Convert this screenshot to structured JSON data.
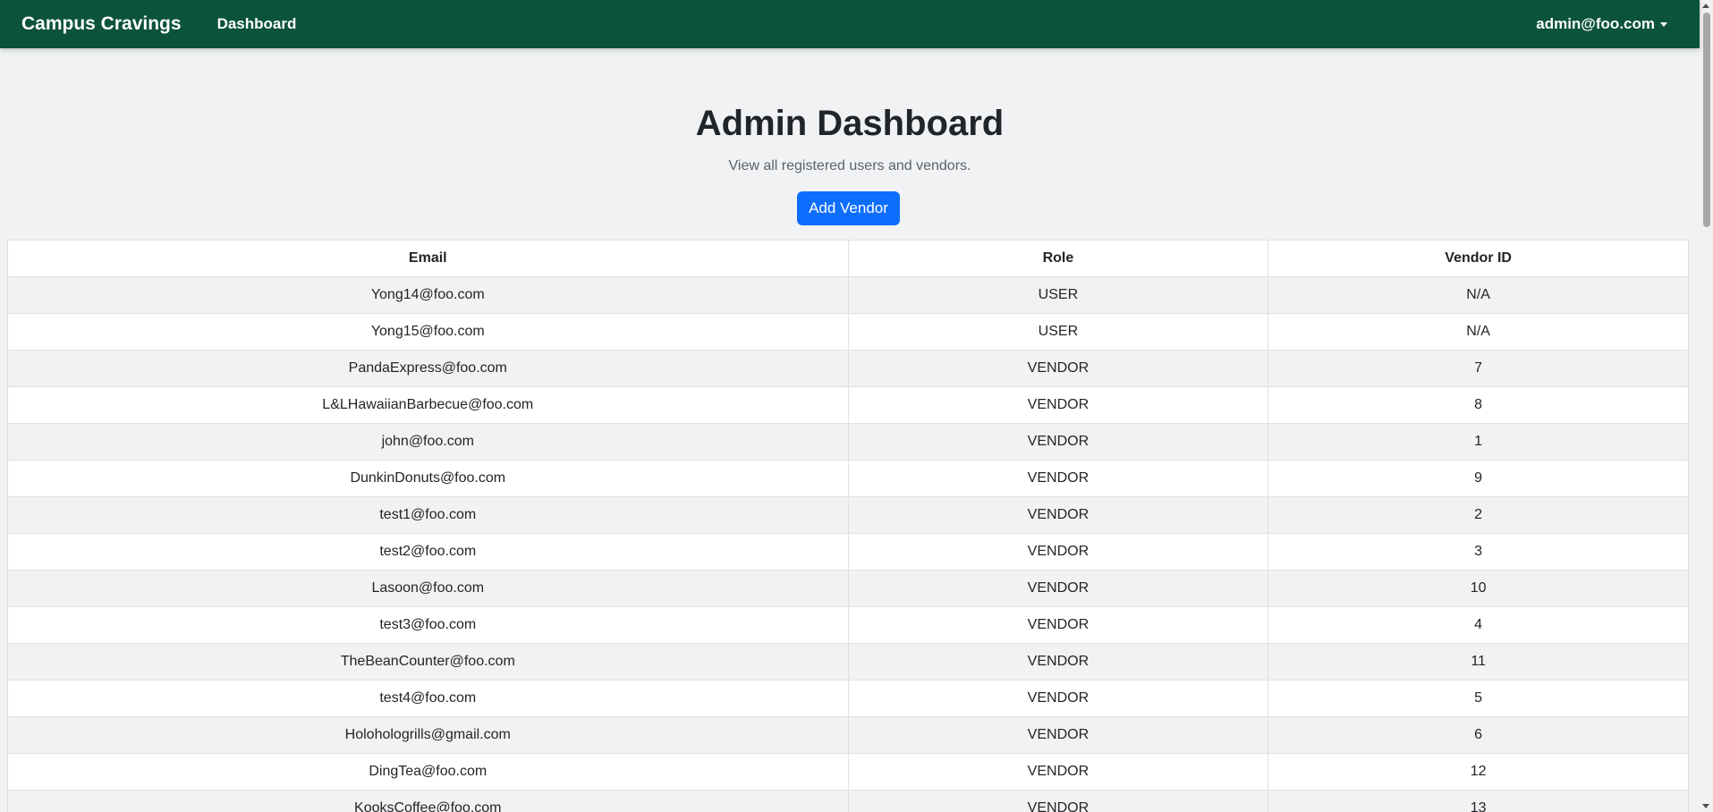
{
  "navbar": {
    "brand": "Campus Cravings",
    "links": [
      "Dashboard"
    ],
    "user": "admin@foo.com",
    "bg_color": "#0b533b"
  },
  "main": {
    "title": "Admin Dashboard",
    "subtitle": "View all registered users and vendors.",
    "add_button": "Add Vendor",
    "accent": "#0d6efd"
  },
  "table": {
    "headers": [
      "Email",
      "Role",
      "Vendor ID"
    ],
    "rows": [
      [
        "Yong14@foo.com",
        "USER",
        "N/A"
      ],
      [
        "Yong15@foo.com",
        "USER",
        "N/A"
      ],
      [
        "PandaExpress@foo.com",
        "VENDOR",
        "7"
      ],
      [
        "L&LHawaiianBarbecue@foo.com",
        "VENDOR",
        "8"
      ],
      [
        "john@foo.com",
        "VENDOR",
        "1"
      ],
      [
        "DunkinDonuts@foo.com",
        "VENDOR",
        "9"
      ],
      [
        "test1@foo.com",
        "VENDOR",
        "2"
      ],
      [
        "test2@foo.com",
        "VENDOR",
        "3"
      ],
      [
        "Lasoon@foo.com",
        "VENDOR",
        "10"
      ],
      [
        "test3@foo.com",
        "VENDOR",
        "4"
      ],
      [
        "TheBeanCounter@foo.com",
        "VENDOR",
        "11"
      ],
      [
        "test4@foo.com",
        "VENDOR",
        "5"
      ],
      [
        "Holohologrills@gmail.com",
        "VENDOR",
        "6"
      ],
      [
        "DingTea@foo.com",
        "VENDOR",
        "12"
      ],
      [
        "KooksCoffee@foo.com",
        "VENDOR",
        "13"
      ]
    ]
  }
}
